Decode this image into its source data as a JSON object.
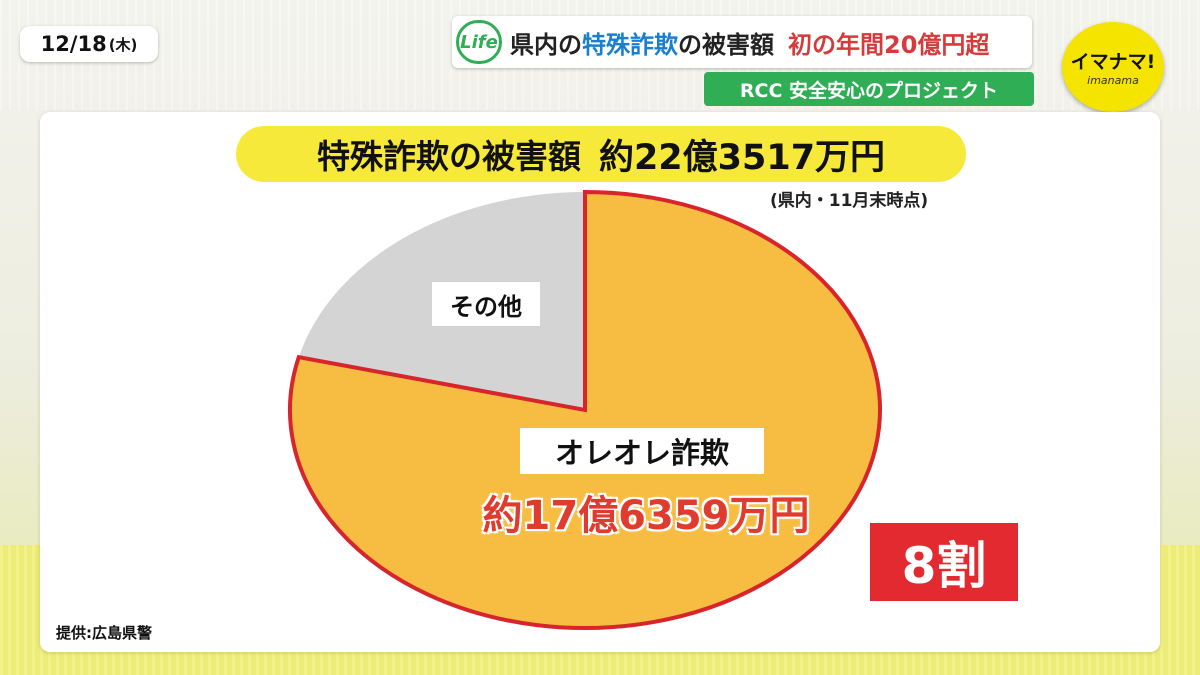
{
  "date": {
    "day": "12/18",
    "weekday": "(木)"
  },
  "headline": {
    "life_badge": "Life",
    "part1": "県内の",
    "part2": "特殊詐欺",
    "part3": "の被害額",
    "part4": "初の年間20億円超"
  },
  "subheadline": "RCC 安全安心のプロジェクト",
  "logo": {
    "main": "イマナマ!",
    "sub": "imanama"
  },
  "colors": {
    "accent_green": "#2fae55",
    "slice_main": "#f7bd42",
    "slice_other": "#d4d4d4",
    "highlight_red": "#e32a31",
    "title_yellow": "#f6e93a"
  },
  "chart_data": {
    "type": "pie",
    "title": "特殊詐欺の被害額",
    "total_label": "約22億3517万円",
    "note": "(県内・11月末時点)",
    "slices": [
      {
        "label": "オレオレ詐欺",
        "value_label": "約17億6359万円",
        "value": 17.6359,
        "share": 0.789
      },
      {
        "label": "その他",
        "value": 4.7158,
        "share": 0.211
      }
    ],
    "unit": "億円",
    "share_badge": "8割",
    "source": "提供:広島県警"
  }
}
